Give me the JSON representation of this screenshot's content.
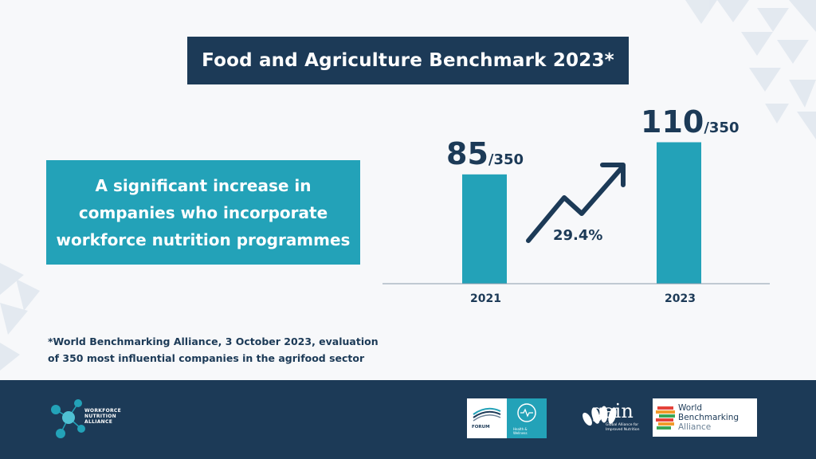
{
  "title": "Food and Agriculture Benchmark 2023*",
  "callout": {
    "lines": [
      "A significant increase in",
      "companies who incorporate",
      "workforce nutrition programmes"
    ]
  },
  "chart_data": {
    "type": "bar",
    "categories": [
      "2021",
      "2023"
    ],
    "values": [
      85,
      110
    ],
    "value_labels": [
      {
        "num": "85",
        "den": "/350"
      },
      {
        "num": "110",
        "den": "/350"
      }
    ],
    "ylim": [
      0,
      132
    ],
    "annotation": "29.4%",
    "bar_color": "#23a2b8",
    "grid": false
  },
  "footnote": {
    "lines": [
      "*World Benchmarking Alliance, 3 October 2023, evaluation",
      "of 350 most influential companies in the agrifood sector"
    ]
  },
  "footer": {
    "wna": {
      "lines": [
        "WORKFORCE",
        "NUTRITION",
        "ALLIANCE"
      ]
    },
    "wef": {
      "forum": "FORUM",
      "hw_lines": [
        "Health &",
        "Wellness"
      ]
    },
    "gain": {
      "word": "gain",
      "sub": [
        "Global Alliance for",
        "Improved Nutrition"
      ]
    },
    "wba": {
      "lines": [
        "World",
        "Benchmarking",
        "Alliance"
      ]
    }
  },
  "colors": {
    "navy": "#1c3a57",
    "teal": "#23a2b8"
  }
}
